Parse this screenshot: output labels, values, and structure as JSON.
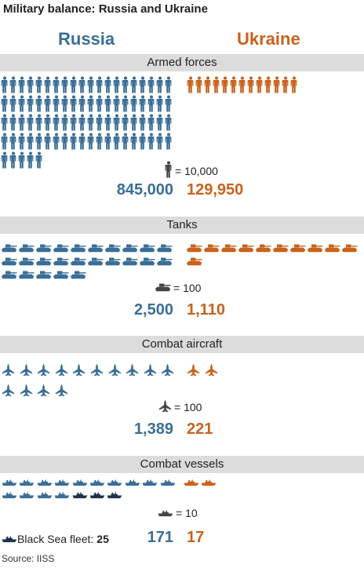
{
  "title": "Military balance: Russia and Ukraine",
  "countries": {
    "russia": "Russia",
    "ukraine": "Ukraine"
  },
  "colors": {
    "russia": "#3a6e96",
    "ukraine": "#c8621c",
    "black_sea": "#1f3246",
    "key_icon": "#444444",
    "band": "#dcdcdc"
  },
  "chart_data": [
    {
      "type": "pictogram",
      "title": "Armed forces",
      "icon": "soldier-icon",
      "unit_label": "= 10,000",
      "unit_value": 10000,
      "series": [
        {
          "name": "Russia",
          "value": 845000,
          "label": "845,000",
          "icons": 85
        },
        {
          "name": "Ukraine",
          "value": 129950,
          "label": "129,950",
          "icons": 13
        }
      ]
    },
    {
      "type": "pictogram",
      "title": "Tanks",
      "icon": "tank-icon",
      "unit_label": "= 100",
      "unit_value": 100,
      "series": [
        {
          "name": "Russia",
          "value": 2500,
          "label": "2,500",
          "icons": 25
        },
        {
          "name": "Ukraine",
          "value": 1110,
          "label": "1,110",
          "icons": 11
        }
      ]
    },
    {
      "type": "pictogram",
      "title": "Combat aircraft",
      "icon": "jet-icon",
      "unit_label": "= 100",
      "unit_value": 100,
      "series": [
        {
          "name": "Russia",
          "value": 1389,
          "label": "1,389",
          "icons": 14
        },
        {
          "name": "Ukraine",
          "value": 221,
          "label": "221",
          "icons": 2
        }
      ]
    },
    {
      "type": "pictogram",
      "title": "Combat vessels",
      "icon": "ship-icon",
      "unit_label": "= 10",
      "unit_value": 10,
      "series": [
        {
          "name": "Russia",
          "value": 171,
          "label": "171",
          "icons": 17,
          "highlight_last": 3
        },
        {
          "name": "Ukraine",
          "value": 17,
          "label": "17",
          "icons": 2
        }
      ],
      "note": {
        "label": "Black Sea fleet:",
        "value": "25"
      }
    }
  ],
  "source": "Source: IISS"
}
